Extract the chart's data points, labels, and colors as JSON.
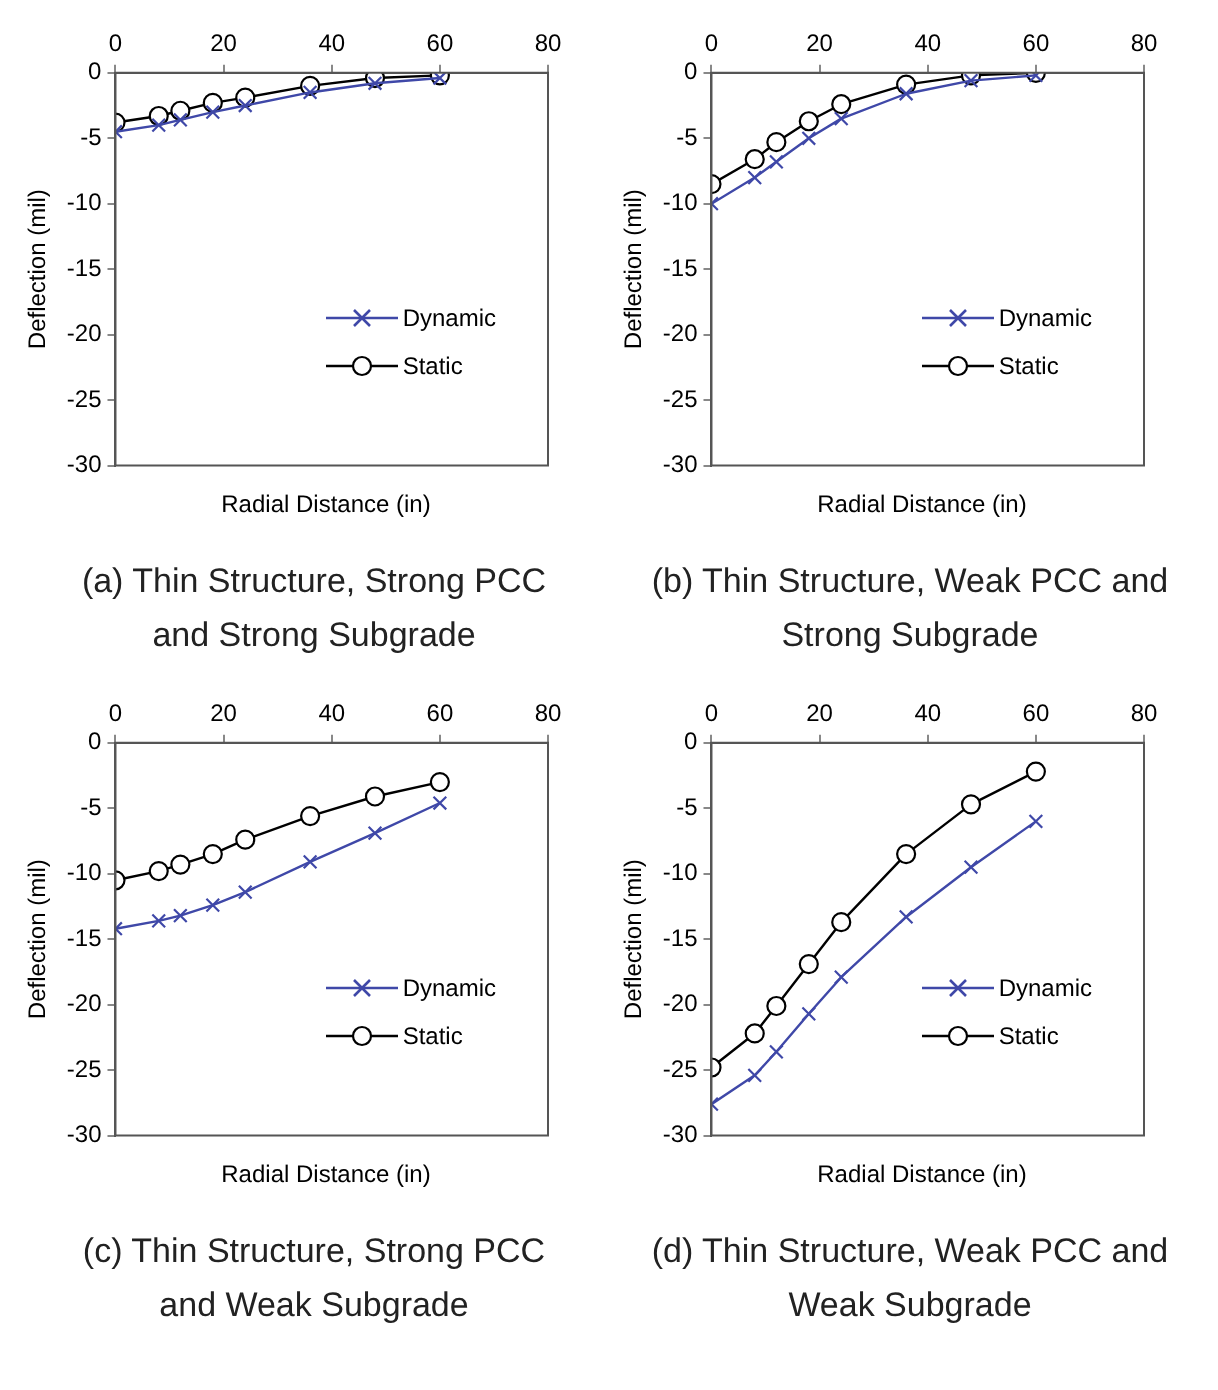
{
  "chart_data": [
    {
      "type": "line",
      "x": [
        0,
        8,
        12,
        18,
        24,
        36,
        48,
        60
      ],
      "xlabel": "Radial Distance (in)",
      "ylabel": "Deflection (mil)",
      "xlim": [
        0,
        80
      ],
      "xticks": [
        0,
        20,
        40,
        60,
        80
      ],
      "ylim": [
        -30,
        0
      ],
      "yticks": [
        -30,
        -25,
        -20,
        -15,
        -10,
        -5,
        0
      ],
      "grid": false,
      "legend": "bottom right",
      "annotations": [
        "(a) Thin Structure, Strong PCC and Strong Subgrade"
      ],
      "series": [
        {
          "name": "Dynamic",
          "color": "#3f48a8",
          "marker": "cross",
          "values": [
            -4.5,
            -4,
            -3.6,
            -3,
            -2.5,
            -1.5,
            -0.8,
            -0.4
          ]
        },
        {
          "name": "Static",
          "color": "#000000",
          "marker": "circle",
          "values": [
            -3.8,
            -3.3,
            -2.9,
            -2.3,
            -1.9,
            -1,
            -0.4,
            -0.2
          ]
        }
      ]
    },
    {
      "type": "line",
      "x": [
        0,
        8,
        12,
        18,
        24,
        36,
        48,
        60
      ],
      "xlabel": "Radial Distance (in)",
      "ylabel": "Deflection (mil)",
      "xlim": [
        0,
        80
      ],
      "xticks": [
        0,
        20,
        40,
        60,
        80
      ],
      "ylim": [
        -30,
        0
      ],
      "yticks": [
        -30,
        -25,
        -20,
        -15,
        -10,
        -5,
        0
      ],
      "grid": false,
      "legend": "bottom right",
      "annotations": [
        "(b) Thin Structure, Weak PCC and Strong Subgrade"
      ],
      "series": [
        {
          "name": "Dynamic",
          "color": "#3f48a8",
          "marker": "cross",
          "values": [
            -10,
            -8,
            -6.8,
            -5,
            -3.5,
            -1.6,
            -0.6,
            -0.2
          ]
        },
        {
          "name": "Static",
          "color": "#000000",
          "marker": "circle",
          "values": [
            -8.5,
            -6.6,
            -5.3,
            -3.7,
            -2.4,
            -0.9,
            -0.2,
            0
          ]
        }
      ]
    },
    {
      "type": "line",
      "x": [
        0,
        8,
        12,
        18,
        24,
        36,
        48,
        60
      ],
      "xlabel": "Radial Distance (in)",
      "ylabel": "Deflection (mil)",
      "xlim": [
        0,
        80
      ],
      "xticks": [
        0,
        20,
        40,
        60,
        80
      ],
      "ylim": [
        -30,
        0
      ],
      "yticks": [
        -30,
        -25,
        -20,
        -15,
        -10,
        -5,
        0
      ],
      "grid": false,
      "legend": "bottom right",
      "annotations": [
        "(c) Thin Structure, Strong PCC and Weak Subgrade"
      ],
      "series": [
        {
          "name": "Dynamic",
          "color": "#3f48a8",
          "marker": "cross",
          "values": [
            -14.2,
            -13.6,
            -13.2,
            -12.4,
            -11.4,
            -9.1,
            -6.9,
            -4.6
          ]
        },
        {
          "name": "Static",
          "color": "#000000",
          "marker": "circle",
          "values": [
            -10.5,
            -9.8,
            -9.3,
            -8.5,
            -7.4,
            -5.6,
            -4.1,
            -3
          ]
        }
      ]
    },
    {
      "type": "line",
      "x": [
        0,
        8,
        12,
        18,
        24,
        36,
        48,
        60
      ],
      "xlabel": "Radial Distance (in)",
      "ylabel": "Deflection (mil)",
      "xlim": [
        0,
        80
      ],
      "xticks": [
        0,
        20,
        40,
        60,
        80
      ],
      "ylim": [
        -30,
        0
      ],
      "yticks": [
        -30,
        -25,
        -20,
        -15,
        -10,
        -5,
        0
      ],
      "grid": false,
      "legend": "bottom right",
      "annotations": [
        "(d) Thin Structure, Weak PCC and Weak Subgrade"
      ],
      "series": [
        {
          "name": "Dynamic",
          "color": "#3f48a8",
          "marker": "cross",
          "values": [
            -27.6,
            -25.4,
            -23.6,
            -20.7,
            -17.9,
            -13.3,
            -9.5,
            -6
          ]
        },
        {
          "name": "Static",
          "color": "#000000",
          "marker": "circle",
          "values": [
            -24.8,
            -22.2,
            -20.1,
            -16.9,
            -13.7,
            -8.5,
            -4.7,
            -2.2
          ]
        }
      ]
    }
  ]
}
